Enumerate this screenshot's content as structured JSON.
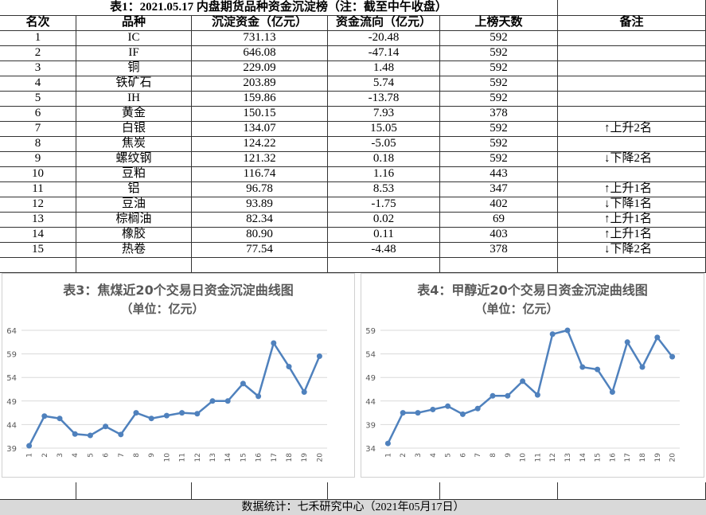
{
  "table": {
    "title": "表1：2021.05.17 内盘期货品种资金沉淀榜（注：截至中午收盘）",
    "headers": [
      "名次",
      "品种",
      "沉淀资金（亿元）",
      "资金流向（亿元）",
      "上榜天数",
      "备注"
    ],
    "rows": [
      [
        "1",
        "IC",
        "731.13",
        "-20.48",
        "592"
      ],
      [
        "2",
        "IF",
        "646.08",
        "-47.14",
        "592"
      ],
      [
        "3",
        "铜",
        "229.09",
        "1.48",
        "592"
      ],
      [
        "4",
        "铁矿石",
        "203.89",
        "5.74",
        "592"
      ],
      [
        "5",
        "IH",
        "159.86",
        "-13.78",
        "592"
      ],
      [
        "6",
        "黄金",
        "150.15",
        "7.93",
        "378"
      ],
      [
        "7",
        "白银",
        "134.07",
        "15.05",
        "592",
        "↑上升2名"
      ],
      [
        "8",
        "焦炭",
        "124.22",
        "-5.05",
        "592"
      ],
      [
        "9",
        "螺纹钢",
        "121.32",
        "0.18",
        "592",
        "↓下降2名"
      ],
      [
        "10",
        "豆粕",
        "116.74",
        "1.16",
        "443"
      ],
      [
        "11",
        "铝",
        "96.78",
        "8.53",
        "347",
        "↑上升1名"
      ],
      [
        "12",
        "豆油",
        "93.89",
        "-1.75",
        "402",
        "↓下降1名"
      ],
      [
        "13",
        "棕榈油",
        "82.34",
        "0.02",
        "69",
        "↑上升1名"
      ],
      [
        "14",
        "橡胶",
        "80.90",
        "0.11",
        "403",
        "↑上升1名"
      ],
      [
        "15",
        "热卷",
        "77.54",
        "-4.48",
        "378",
        "↓下降2名"
      ]
    ]
  },
  "chart_data": [
    {
      "type": "line",
      "title": "表3：焦煤近20个交易日资金沉淀曲线图",
      "subtitle": "（单位：亿元）",
      "categories": [
        "1",
        "2",
        "3",
        "4",
        "5",
        "6",
        "7",
        "8",
        "9",
        "10",
        "11",
        "12",
        "13",
        "14",
        "15",
        "16",
        "17",
        "18",
        "19",
        "20"
      ],
      "series": [
        {
          "color": "#4f81bd",
          "values": [
            39.5,
            45.8,
            45.3,
            42.0,
            41.7,
            43.6,
            41.9,
            46.5,
            45.3,
            45.9,
            46.5,
            46.3,
            49.0,
            49.0,
            52.7,
            50.0,
            61.3,
            56.3,
            50.9,
            58.5
          ]
        }
      ],
      "ylim": [
        39,
        64
      ],
      "yticks": [
        39,
        44,
        49,
        54,
        59,
        64
      ],
      "grid": true
    },
    {
      "type": "line",
      "title": "表4：甲醇近20个交易日资金沉淀曲线图",
      "subtitle": "（单位：亿元）",
      "categories": [
        "1",
        "2",
        "3",
        "4",
        "5",
        "6",
        "7",
        "8",
        "9",
        "10",
        "11",
        "12",
        "13",
        "14",
        "15",
        "16",
        "17",
        "18",
        "19",
        "20"
      ],
      "series": [
        {
          "color": "#4f81bd",
          "values": [
            35.0,
            41.5,
            41.5,
            42.2,
            42.9,
            41.2,
            42.4,
            45.1,
            45.1,
            48.2,
            45.3,
            58.2,
            59.0,
            51.2,
            50.7,
            45.9,
            56.5,
            51.2,
            57.5,
            53.4
          ]
        }
      ],
      "ylim": [
        34,
        59
      ],
      "yticks": [
        34,
        39,
        44,
        49,
        54,
        59
      ],
      "grid": true
    }
  ],
  "footer": "数据统计：七禾研究中心（2021年05月17日）"
}
